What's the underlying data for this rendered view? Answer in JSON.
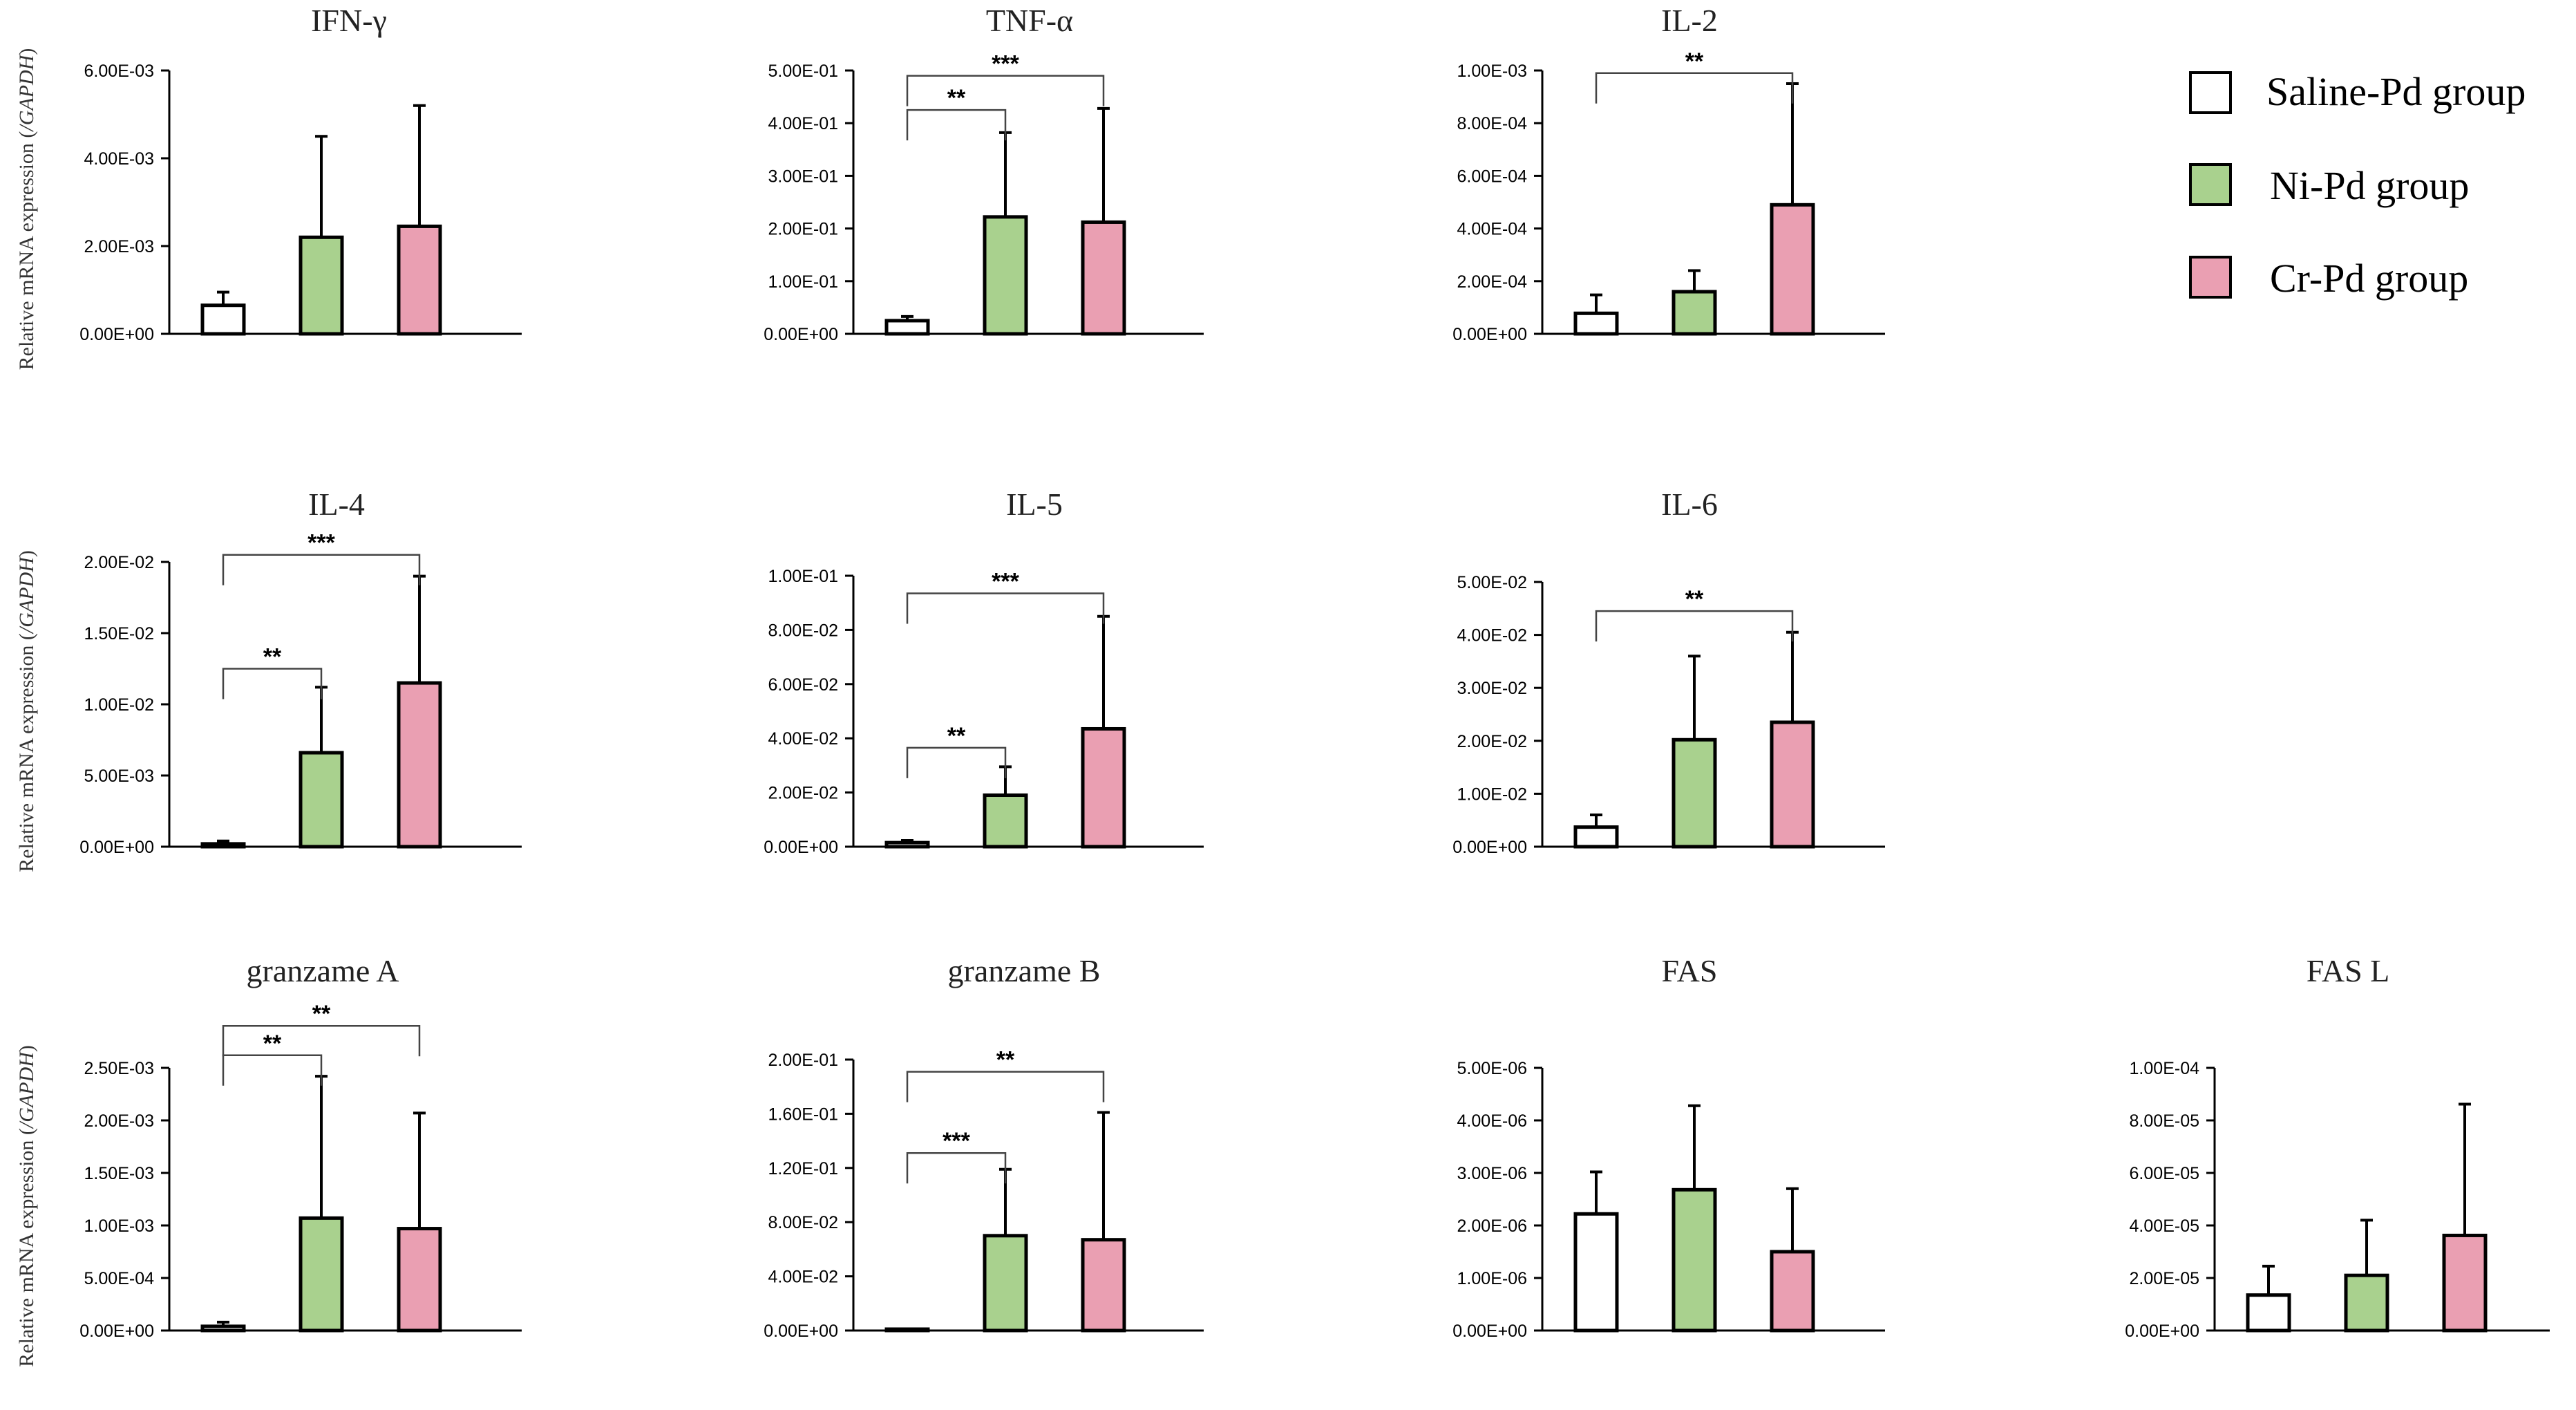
{
  "ylabel_parts": [
    "Relative mRNA expression (",
    "/GAPDH",
    ")"
  ],
  "colors": {
    "saline": "#ffffff",
    "ni": "#a9d18e",
    "cr": "#ea9fb2",
    "stroke": "#000000"
  },
  "legend": [
    {
      "label": "Saline-Pd group",
      "color": "#ffffff"
    },
    {
      "label": "Ni-Pd group",
      "color": "#a9d18e"
    },
    {
      "label": "Cr-Pd group",
      "color": "#ea9fb2"
    }
  ],
  "chart_data": [
    {
      "type": "bar",
      "title": "IFN-γ",
      "categories": [
        "Saline-Pd group",
        "Ni-Pd group",
        "Cr-Pd group"
      ],
      "values": [
        0.00065,
        0.0022,
        0.00245
      ],
      "errors": [
        0.0003,
        0.0023,
        0.00275
      ],
      "ylim": [
        0,
        0.006
      ],
      "yticks": [
        "0.00E+00",
        "2.00E-03",
        "4.00E-03",
        "6.00E-03"
      ],
      "significance": [],
      "show_ylabel": true
    },
    {
      "type": "bar",
      "title": "TNF-α",
      "categories": [
        "Saline-Pd group",
        "Ni-Pd group",
        "Cr-Pd group"
      ],
      "values": [
        0.025,
        0.222,
        0.212
      ],
      "errors": [
        0.008,
        0.16,
        0.216
      ],
      "ylim": [
        0,
        0.5
      ],
      "yticks": [
        "0.00E+00",
        "1.00E-01",
        "2.00E-01",
        "3.00E-01",
        "4.00E-01",
        "5.00E-01"
      ],
      "significance": [
        {
          "from": 0,
          "to": 1,
          "y": 0.425,
          "label": "**"
        },
        {
          "from": 0,
          "to": 2,
          "y": 0.49,
          "label": "***"
        }
      ],
      "show_ylabel": false
    },
    {
      "type": "bar",
      "title": "IL-2",
      "categories": [
        "Saline-Pd group",
        "Ni-Pd group",
        "Cr-Pd group"
      ],
      "values": [
        7.8e-05,
        0.00016,
        0.00049
      ],
      "errors": [
        7e-05,
        8e-05,
        0.00046
      ],
      "ylim": [
        0,
        0.001
      ],
      "yticks": [
        "0.00E+00",
        "2.00E-04",
        "4.00E-04",
        "6.00E-04",
        "8.00E-04",
        "1.00E-03"
      ],
      "significance": [
        {
          "from": 0,
          "to": 2,
          "y": 0.00099,
          "label": "**"
        }
      ],
      "show_ylabel": false
    },
    {
      "type": "bar",
      "title": "IL-4",
      "categories": [
        "Saline-Pd group",
        "Ni-Pd group",
        "Cr-Pd group"
      ],
      "values": [
        0.0002,
        0.0066,
        0.0115
      ],
      "errors": [
        0.0002,
        0.0046,
        0.0075
      ],
      "ylim": [
        0,
        0.02
      ],
      "yticks": [
        "0.00E+00",
        "5.00E-03",
        "1.00E-02",
        "1.50E-02",
        "2.00E-02"
      ],
      "significance": [
        {
          "from": 0,
          "to": 1,
          "y": 0.0125,
          "label": "**"
        },
        {
          "from": 0,
          "to": 2,
          "y": 0.0205,
          "label": "***"
        }
      ],
      "show_ylabel": true
    },
    {
      "type": "bar",
      "title": "IL-5",
      "categories": [
        "Saline-Pd group",
        "Ni-Pd group",
        "Cr-Pd group"
      ],
      "values": [
        0.0015,
        0.019,
        0.0435
      ],
      "errors": [
        0.0008,
        0.0105,
        0.0415
      ],
      "ylim": [
        0,
        0.1
      ],
      "yticks": [
        "0.00E+00",
        "2.00E-02",
        "4.00E-02",
        "6.00E-02",
        "8.00E-02",
        "1.00E-01"
      ],
      "significance": [
        {
          "from": 0,
          "to": 1,
          "y": 0.0365,
          "label": "**"
        },
        {
          "from": 0,
          "to": 2,
          "y": 0.0935,
          "label": "***"
        }
      ],
      "show_ylabel": false
    },
    {
      "type": "bar",
      "title": "IL-6",
      "categories": [
        "Saline-Pd group",
        "Ni-Pd group",
        "Cr-Pd group"
      ],
      "values": [
        0.0037,
        0.0202,
        0.0235
      ],
      "errors": [
        0.0023,
        0.0158,
        0.017
      ],
      "ylim": [
        0,
        0.05
      ],
      "yticks": [
        "0.00E+00",
        "1.00E-02",
        "2.00E-02",
        "3.00E-02",
        "4.00E-02",
        "5.00E-02"
      ],
      "significance": [
        {
          "from": 0,
          "to": 2,
          "y": 0.0445,
          "label": "**"
        }
      ],
      "show_ylabel": false
    },
    {
      "type": "bar",
      "title": "granzame A",
      "categories": [
        "Saline-Pd group",
        "Ni-Pd group",
        "Cr-Pd group"
      ],
      "values": [
        4e-05,
        0.00107,
        0.00097
      ],
      "errors": [
        4e-05,
        0.00135,
        0.0011
      ],
      "ylim": [
        0,
        0.0025
      ],
      "yticks": [
        "0.00E+00",
        "5.00E-04",
        "1.00E-03",
        "1.50E-03",
        "2.00E-03",
        "2.50E-03"
      ],
      "significance": [
        {
          "from": 0,
          "to": 1,
          "y": 0.00262,
          "label": "**"
        },
        {
          "from": 0,
          "to": 2,
          "y": 0.0029,
          "label": "**"
        }
      ],
      "show_ylabel": true
    },
    {
      "type": "bar",
      "title": "granzame B",
      "categories": [
        "Saline-Pd group",
        "Ni-Pd group",
        "Cr-Pd group"
      ],
      "values": [
        0.0008,
        0.07,
        0.067
      ],
      "errors": [
        0.0004,
        0.049,
        0.094
      ],
      "ylim": [
        0,
        0.2
      ],
      "yticks": [
        "0.00E+00",
        "4.00E-02",
        "8.00E-02",
        "1.20E-01",
        "1.60E-01",
        "2.00E-01"
      ],
      "significance": [
        {
          "from": 0,
          "to": 1,
          "y": 0.131,
          "label": "***"
        },
        {
          "from": 0,
          "to": 2,
          "y": 0.191,
          "label": "**"
        }
      ],
      "show_ylabel": false
    },
    {
      "type": "bar",
      "title": "FAS",
      "categories": [
        "Saline-Pd group",
        "Ni-Pd group",
        "Cr-Pd group"
      ],
      "values": [
        2.22e-06,
        2.68e-06,
        1.5e-06
      ],
      "errors": [
        8e-07,
        1.6e-06,
        1.2e-06
      ],
      "ylim": [
        0,
        5e-06
      ],
      "yticks": [
        "0.00E+00",
        "1.00E-06",
        "2.00E-06",
        "3.00E-06",
        "4.00E-06",
        "5.00E-06"
      ],
      "significance": [],
      "show_ylabel": false
    },
    {
      "type": "bar",
      "title": "FAS L",
      "categories": [
        "Saline-Pd group",
        "Ni-Pd group",
        "Cr-Pd group"
      ],
      "values": [
        1.35e-05,
        2.1e-05,
        3.62e-05
      ],
      "errors": [
        1.1e-05,
        2.1e-05,
        5e-05
      ],
      "ylim": [
        0,
        0.0001
      ],
      "yticks": [
        "0.00E+00",
        "2.00E-05",
        "4.00E-05",
        "6.00E-05",
        "8.00E-05",
        "1.00E-04"
      ],
      "significance": [],
      "show_ylabel": false
    }
  ]
}
